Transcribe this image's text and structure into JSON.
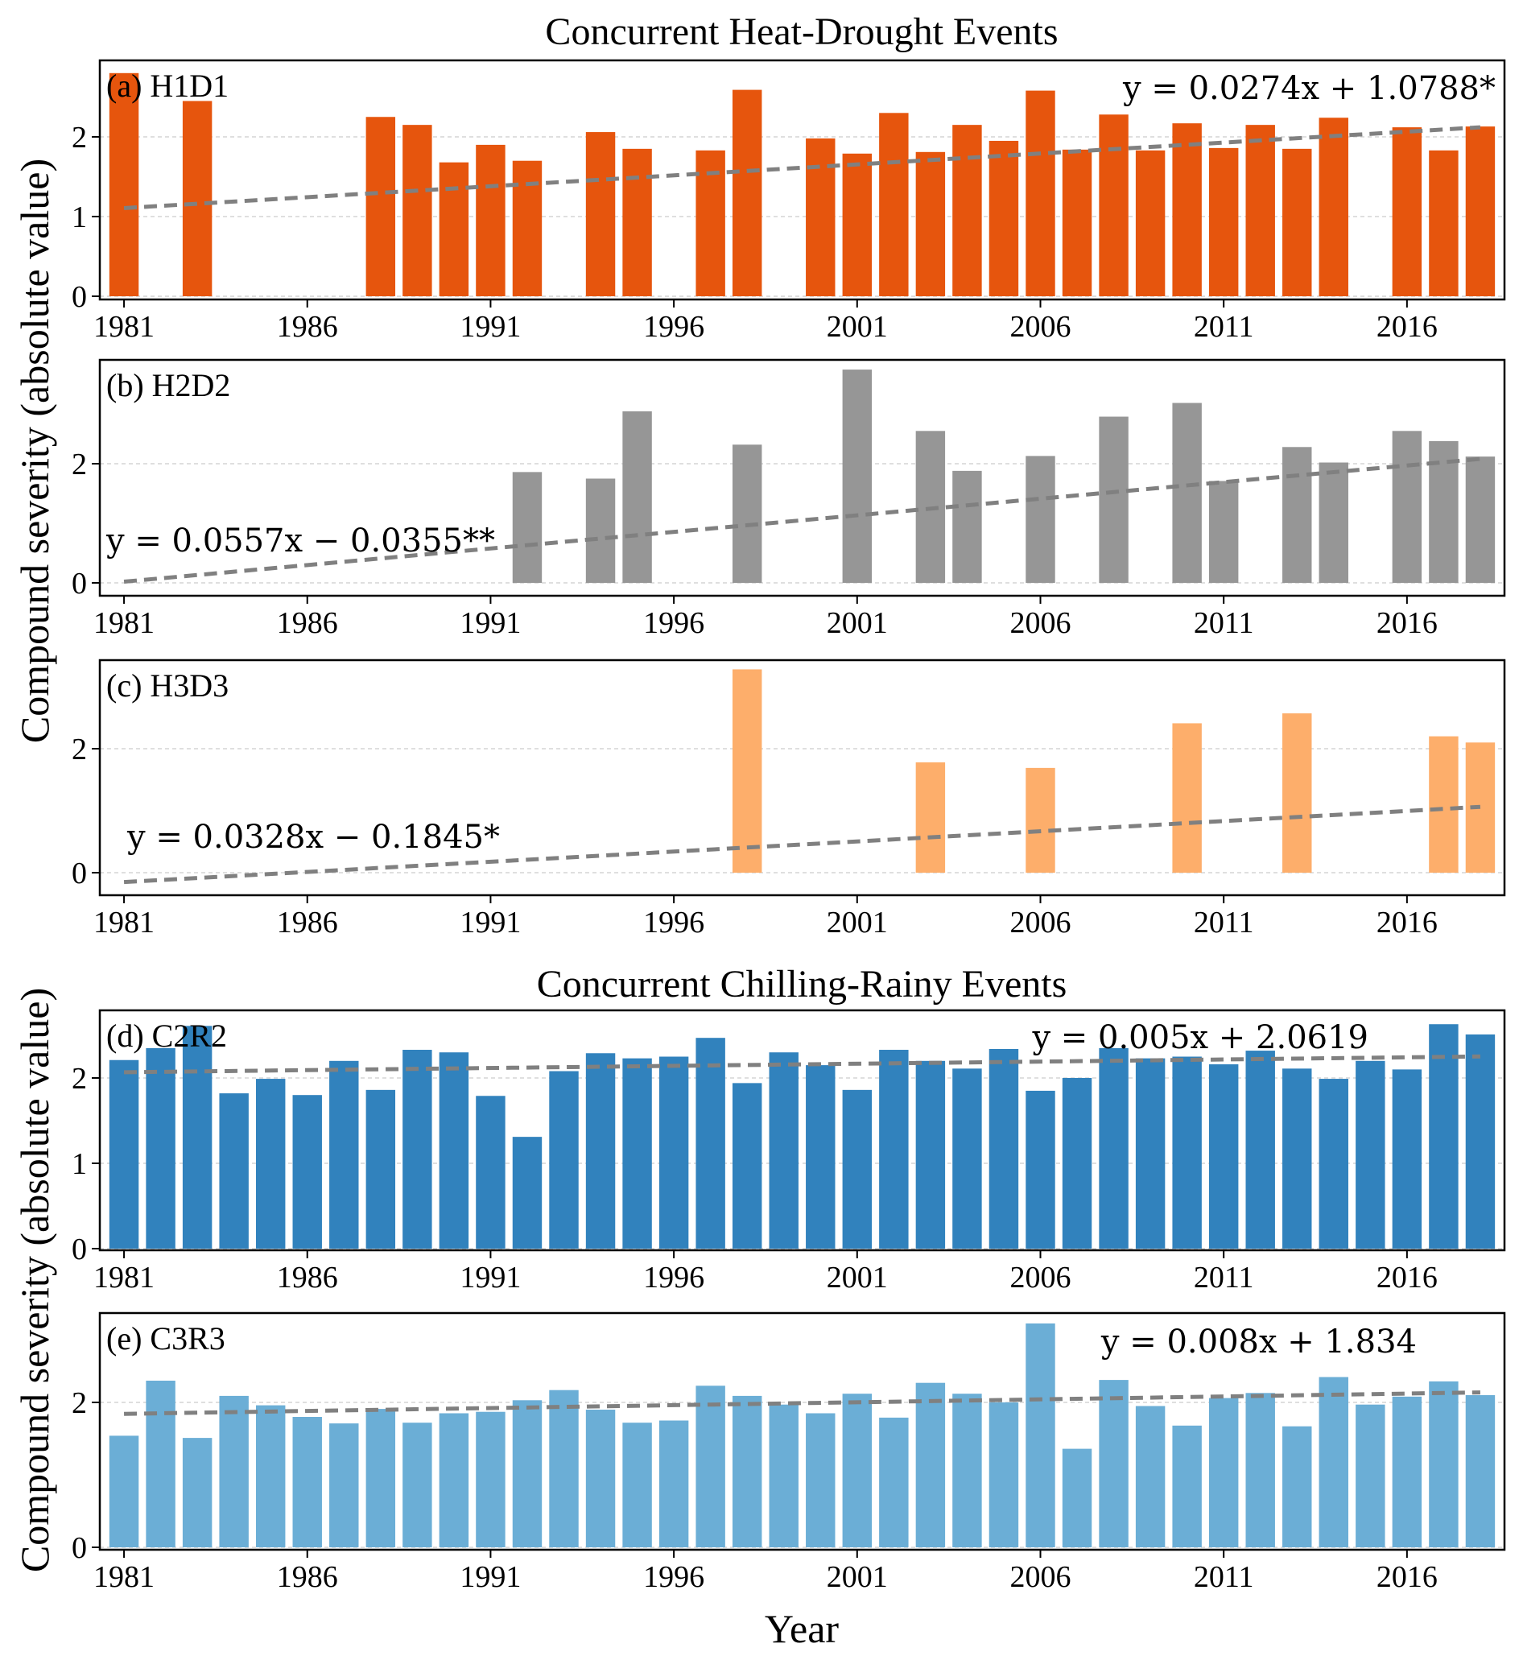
{
  "figure": {
    "ylabel_top": "Compound severity (absolute value)",
    "ylabel_bottom": "Compound severity (absolute value)",
    "xlabel": "Year",
    "group_titles": [
      "Concurrent Heat-Drought Events",
      "Concurrent Chilling-Rainy Events"
    ]
  },
  "chart_data": [
    {
      "type": "bar",
      "panel": "(a) H1D1",
      "group": "Concurrent Heat-Drought Events",
      "color": "#e6550d",
      "xlabel": "Year",
      "ylabel": "Compound severity (absolute value)",
      "xticks": [
        "1981",
        "1986",
        "1991",
        "1996",
        "2001",
        "2006",
        "2011",
        "2016"
      ],
      "yticks": [
        0,
        1,
        2
      ],
      "ylim": [
        0,
        2.9
      ],
      "grid": "horizontal dashed",
      "equation": "y = 0.0274x + 1.0788*",
      "equation_position": "top-right",
      "trend": {
        "slope": 0.0274,
        "intercept": 1.0788
      },
      "x": [
        1981,
        1982,
        1983,
        1984,
        1985,
        1986,
        1987,
        1988,
        1989,
        1990,
        1991,
        1992,
        1993,
        1994,
        1995,
        1996,
        1997,
        1998,
        1999,
        2000,
        2001,
        2002,
        2003,
        2004,
        2005,
        2006,
        2007,
        2008,
        2009,
        2010,
        2011,
        2012,
        2013,
        2014,
        2015,
        2016,
        2017,
        2018
      ],
      "values": [
        2.8,
        0,
        2.45,
        0,
        0,
        0,
        0,
        2.25,
        2.15,
        1.68,
        1.9,
        1.7,
        0,
        2.06,
        1.85,
        0,
        1.83,
        2.59,
        0,
        1.98,
        1.79,
        2.3,
        1.81,
        2.15,
        1.95,
        2.58,
        1.84,
        2.28,
        1.83,
        2.17,
        1.86,
        2.15,
        1.85,
        2.24,
        0,
        2.12,
        1.83,
        2.13
      ]
    },
    {
      "type": "bar",
      "panel": "(b) H2D2",
      "group": "Concurrent Heat-Drought Events",
      "color": "#969696",
      "xlabel": "Year",
      "ylabel": "Compound severity (absolute value)",
      "xticks": [
        "1981",
        "1986",
        "1991",
        "1996",
        "2001",
        "2006",
        "2011",
        "2016"
      ],
      "yticks": [
        0,
        2
      ],
      "ylim": [
        -0.2,
        3.9
      ],
      "grid": "horizontal dashed",
      "equation": "y = 0.0557x − 0.0355**",
      "equation_position": "left",
      "trend": {
        "slope": 0.0557,
        "intercept": -0.0355
      },
      "x": [
        1981,
        1982,
        1983,
        1984,
        1985,
        1986,
        1987,
        1988,
        1989,
        1990,
        1991,
        1992,
        1993,
        1994,
        1995,
        1996,
        1997,
        1998,
        1999,
        2000,
        2001,
        2002,
        2003,
        2004,
        2005,
        2006,
        2007,
        2008,
        2009,
        2010,
        2011,
        2012,
        2013,
        2014,
        2015,
        2016,
        2017,
        2018
      ],
      "values": [
        0,
        0,
        0,
        0,
        0,
        0,
        0,
        0,
        0,
        0,
        0,
        1.86,
        0,
        1.75,
        2.88,
        0,
        0,
        2.32,
        0,
        0,
        3.58,
        0,
        2.55,
        1.88,
        0,
        2.13,
        0,
        2.79,
        0,
        3.02,
        1.71,
        0,
        2.28,
        2.02,
        0,
        2.55,
        2.38,
        2.12
      ]
    },
    {
      "type": "bar",
      "panel": "(c) H3D3",
      "group": "Concurrent Heat-Drought Events",
      "color": "#fdae6b",
      "xlabel": "Year",
      "ylabel": "Compound severity (absolute value)",
      "xticks": [
        "1981",
        "1986",
        "1991",
        "1996",
        "2001",
        "2006",
        "2011",
        "2016"
      ],
      "yticks": [
        0,
        2
      ],
      "ylim": [
        -0.2,
        3.5
      ],
      "grid": "horizontal dashed",
      "equation": "y = 0.0328x − 0.1845*",
      "equation_position": "left",
      "trend": {
        "slope": 0.0328,
        "intercept": -0.1845
      },
      "x": [
        1981,
        1982,
        1983,
        1984,
        1985,
        1986,
        1987,
        1988,
        1989,
        1990,
        1991,
        1992,
        1993,
        1994,
        1995,
        1996,
        1997,
        1998,
        1999,
        2000,
        2001,
        2002,
        2003,
        2004,
        2005,
        2006,
        2007,
        2008,
        2009,
        2010,
        2011,
        2012,
        2013,
        2014,
        2015,
        2016,
        2017,
        2018
      ],
      "values": [
        0,
        0,
        0,
        0,
        0,
        0,
        0,
        0,
        0,
        0,
        0,
        0,
        0,
        0,
        0,
        0,
        0,
        3.28,
        0,
        0,
        0,
        0,
        1.78,
        0,
        0,
        1.69,
        0,
        0,
        0,
        2.41,
        0,
        0,
        2.57,
        0,
        0,
        0,
        2.2,
        2.1
      ]
    },
    {
      "type": "bar",
      "panel": "(d) C2R2",
      "group": "Concurrent Chilling-Rainy Events",
      "color": "#3182bd",
      "xlabel": "Year",
      "ylabel": "Compound severity (absolute value)",
      "xticks": [
        "1981",
        "1986",
        "1991",
        "1996",
        "2001",
        "2006",
        "2011",
        "2016"
      ],
      "yticks": [
        0,
        1,
        2
      ],
      "ylim": [
        0,
        2.75
      ],
      "grid": "horizontal dashed",
      "equation": "y = 0.005x + 2.0619",
      "equation_position": "top-right",
      "trend": {
        "slope": 0.005,
        "intercept": 2.0619
      },
      "x": [
        1981,
        1982,
        1983,
        1984,
        1985,
        1986,
        1987,
        1988,
        1989,
        1990,
        1991,
        1992,
        1993,
        1994,
        1995,
        1996,
        1997,
        1998,
        1999,
        2000,
        2001,
        2002,
        2003,
        2004,
        2005,
        2006,
        2007,
        2008,
        2009,
        2010,
        2011,
        2012,
        2013,
        2014,
        2015,
        2016,
        2017,
        2018
      ],
      "values": [
        2.21,
        2.35,
        2.61,
        1.82,
        1.99,
        1.8,
        2.2,
        1.86,
        2.33,
        2.3,
        1.79,
        1.31,
        2.08,
        2.29,
        2.23,
        2.25,
        2.47,
        1.94,
        2.3,
        2.15,
        1.86,
        2.33,
        2.2,
        2.11,
        2.34,
        1.85,
        2.0,
        2.35,
        2.23,
        2.25,
        2.16,
        2.32,
        2.11,
        1.99,
        2.2,
        2.1,
        2.63,
        2.51
      ]
    },
    {
      "type": "bar",
      "panel": "(e) C3R3",
      "group": "Concurrent Chilling-Rainy Events",
      "color": "#6baed6",
      "xlabel": "Year",
      "ylabel": "Compound severity (absolute value)",
      "xticks": [
        "1981",
        "1986",
        "1991",
        "1996",
        "2001",
        "2006",
        "2011",
        "2016"
      ],
      "yticks": [
        0,
        2
      ],
      "ylim": [
        0,
        3.3
      ],
      "grid": "horizontal dashed",
      "equation": "y = 0.008x + 1.834",
      "equation_position": "top-right",
      "trend": {
        "slope": 0.008,
        "intercept": 1.834
      },
      "x": [
        1981,
        1982,
        1983,
        1984,
        1985,
        1986,
        1987,
        1988,
        1989,
        1990,
        1991,
        1992,
        1993,
        1994,
        1995,
        1996,
        1997,
        1998,
        1999,
        2000,
        2001,
        2002,
        2003,
        2004,
        2005,
        2006,
        2007,
        2008,
        2009,
        2010,
        2011,
        2012,
        2013,
        2014,
        2015,
        2016,
        2017,
        2018
      ],
      "values": [
        1.54,
        2.3,
        1.51,
        2.09,
        1.96,
        1.8,
        1.71,
        1.91,
        1.72,
        1.85,
        1.87,
        2.03,
        2.17,
        1.9,
        1.72,
        1.75,
        2.23,
        2.09,
        1.97,
        1.85,
        2.12,
        1.79,
        2.27,
        2.12,
        2.0,
        3.09,
        1.36,
        2.31,
        1.95,
        1.68,
        2.06,
        2.13,
        1.67,
        2.35,
        1.97,
        2.08,
        2.29,
        2.1
      ]
    }
  ]
}
